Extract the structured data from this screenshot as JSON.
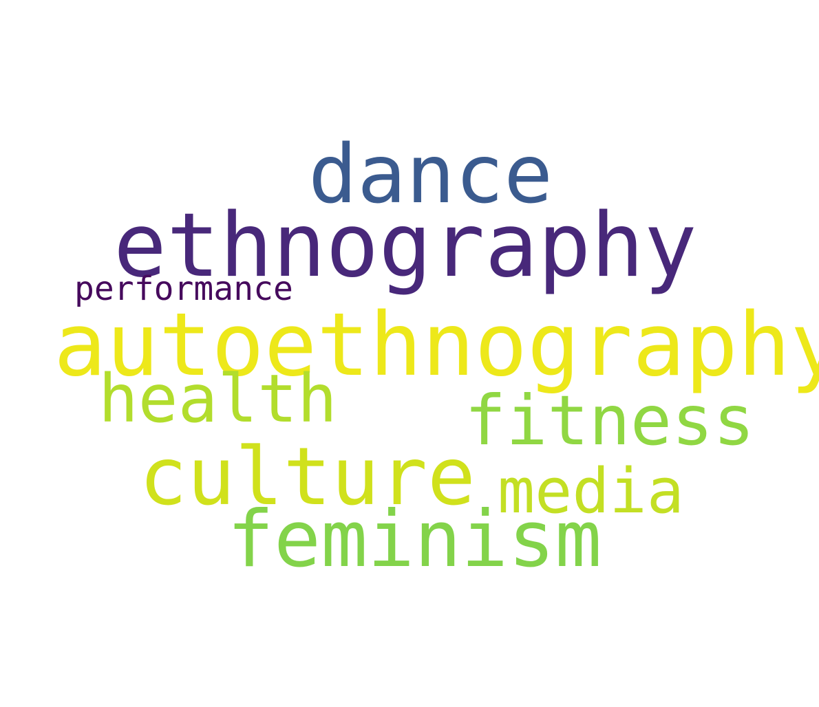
{
  "word_cloud": {
    "words": [
      {
        "id": "dance",
        "text": "dance",
        "color": "#3b5b8f"
      },
      {
        "id": "ethnography",
        "text": "ethnography",
        "color": "#48287a"
      },
      {
        "id": "performance",
        "text": "performance",
        "color": "#460a5d"
      },
      {
        "id": "autoethnography",
        "text": "autoethnography",
        "color": "#ede81a"
      },
      {
        "id": "health",
        "text": "health",
        "color": "#b2dd2d"
      },
      {
        "id": "fitness",
        "text": "fitness",
        "color": "#90d743"
      },
      {
        "id": "culture",
        "text": "culture",
        "color": "#d0e11c"
      },
      {
        "id": "media",
        "text": "media",
        "color": "#c3df24"
      },
      {
        "id": "feminism",
        "text": "feminism",
        "color": "#83d34a"
      }
    ]
  }
}
